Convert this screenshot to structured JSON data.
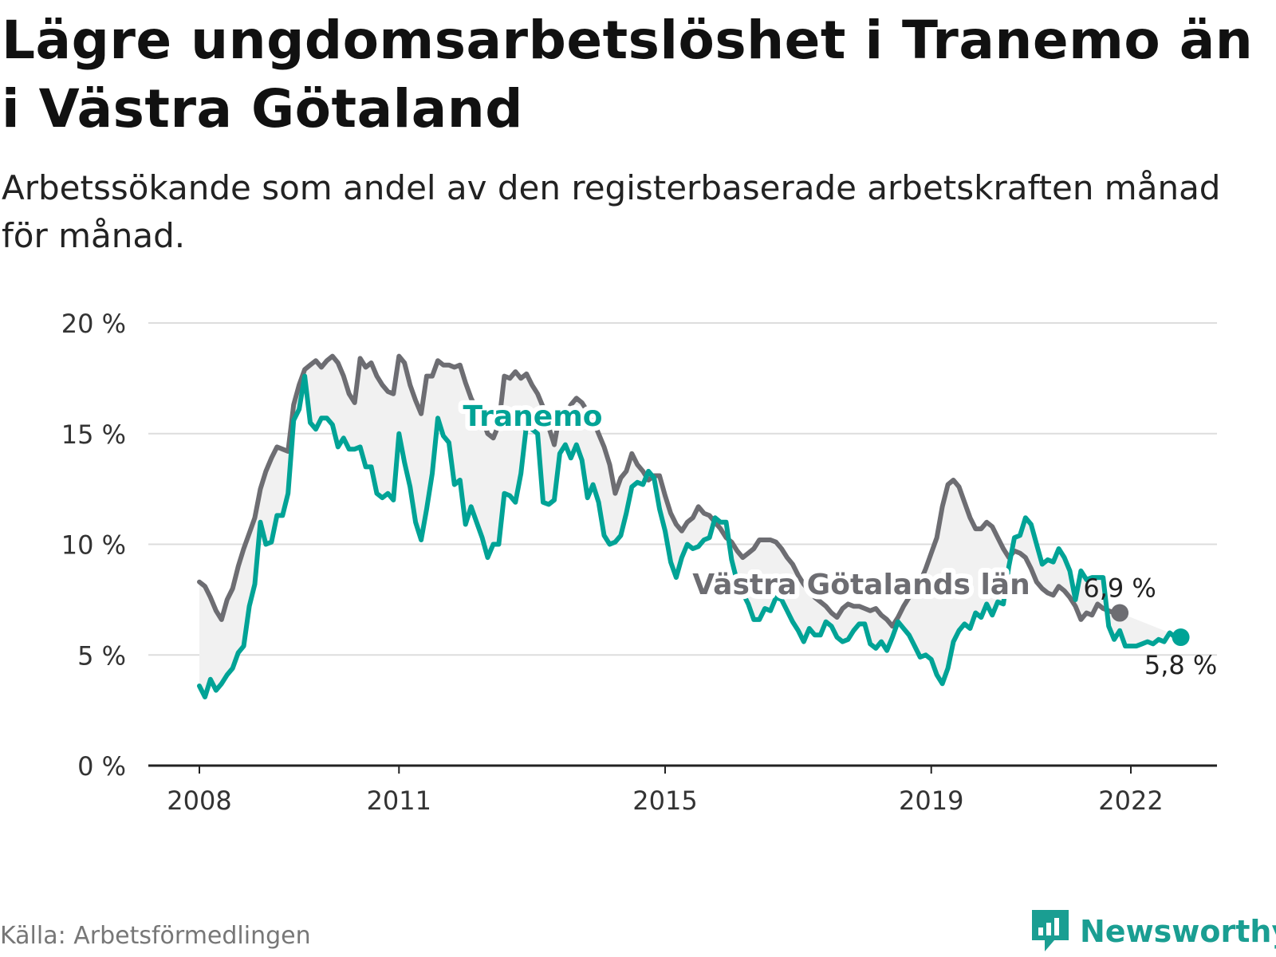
{
  "title": "Lägre ungdomsarbetslöshet i Tranemo än i Västra Götaland",
  "subtitle": "Arbetssökande som andel av den registerbaserade arbetskraften månad för månad.",
  "source": "Källa: Arbetsförmedlingen",
  "brand": "Newsworthy",
  "colors": {
    "tranemo": "#00a396",
    "region": "#6d6d72",
    "fill": "#f1f1f1",
    "grid": "#dddddd",
    "axis": "#222222"
  },
  "chart_data": {
    "type": "line",
    "title": "Lägre ungdomsarbetslöshet i Tranemo än i Västra Götaland",
    "xlabel": "",
    "ylabel": "",
    "xlim": [
      2008.0,
      2023.8
    ],
    "ylim": [
      0,
      20
    ],
    "yticks": [
      0,
      5,
      10,
      15,
      20
    ],
    "ytick_labels": [
      "0 %",
      "5 %",
      "10 %",
      "15 %",
      "20 %"
    ],
    "xticks": [
      2008,
      2011,
      2015,
      2019,
      2022
    ],
    "xtick_labels": [
      "2008",
      "2011",
      "2015",
      "2019",
      "2022"
    ],
    "grid": true,
    "series": [
      {
        "name": "Västra Götalands län",
        "label": "Västra Götalands län",
        "end_label": "6,9 %",
        "x_start": 2008.0,
        "step": 0.0833333,
        "values": [
          8.3,
          8.1,
          7.6,
          7.0,
          6.6,
          7.5,
          8.0,
          9.0,
          9.8,
          10.5,
          11.2,
          12.5,
          13.3,
          13.9,
          14.4,
          14.3,
          14.2,
          16.3,
          17.2,
          17.9,
          18.1,
          18.3,
          18.0,
          18.3,
          18.5,
          18.2,
          17.6,
          16.8,
          16.4,
          18.4,
          18.0,
          18.2,
          17.6,
          17.2,
          16.9,
          16.8,
          18.5,
          18.2,
          17.2,
          16.5,
          15.9,
          17.6,
          17.6,
          18.3,
          18.1,
          18.1,
          18.0,
          18.1,
          17.3,
          16.6,
          16.1,
          15.7,
          15.0,
          14.8,
          15.4,
          17.6,
          17.5,
          17.8,
          17.5,
          17.7,
          17.2,
          16.8,
          16.2,
          15.3,
          14.5,
          15.9,
          15.9,
          16.3,
          16.6,
          16.4,
          16.0,
          15.6,
          15.0,
          14.4,
          13.6,
          12.3,
          13.0,
          13.3,
          14.1,
          13.6,
          13.3,
          12.9,
          13.1,
          13.1,
          12.2,
          11.4,
          10.9,
          10.6,
          11.0,
          11.2,
          11.7,
          11.4,
          11.3,
          11.0,
          10.7,
          10.3,
          10.1,
          9.7,
          9.4,
          9.6,
          9.8,
          10.2,
          10.2,
          10.2,
          10.1,
          9.8,
          9.4,
          9.1,
          8.6,
          8.2,
          7.9,
          7.6,
          7.4,
          7.2,
          6.9,
          6.7,
          7.1,
          7.3,
          7.2,
          7.2,
          7.1,
          7.0,
          7.1,
          6.8,
          6.6,
          6.3,
          6.7,
          7.2,
          7.6,
          7.8,
          8.3,
          8.9,
          9.6,
          10.3,
          11.7,
          12.7,
          12.9,
          12.6,
          11.9,
          11.2,
          10.7,
          10.7,
          11.0,
          10.8,
          10.3,
          9.8,
          9.4,
          9.7,
          9.6,
          9.4,
          8.9,
          8.3,
          8.0,
          7.8,
          7.7,
          8.1,
          7.9,
          7.6,
          7.2,
          6.6,
          6.9,
          6.8,
          7.3,
          7.1,
          7.0,
          6.9,
          6.9
        ]
      },
      {
        "name": "Tranemo",
        "label": "Tranemo",
        "end_label": "5,8 %",
        "x_start": 2008.0,
        "step": 0.0833333,
        "values": [
          3.6,
          3.1,
          3.9,
          3.4,
          3.7,
          4.1,
          4.4,
          5.1,
          5.4,
          7.2,
          8.2,
          11.0,
          10.0,
          10.1,
          11.3,
          11.3,
          12.3,
          15.6,
          16.1,
          17.6,
          15.5,
          15.2,
          15.7,
          15.7,
          15.4,
          14.4,
          14.8,
          14.3,
          14.3,
          14.4,
          13.5,
          13.5,
          12.3,
          12.1,
          12.3,
          12.0,
          15.0,
          13.7,
          12.6,
          11.0,
          10.2,
          11.6,
          13.2,
          15.7,
          14.9,
          14.6,
          12.7,
          12.9,
          10.9,
          11.7,
          11.0,
          10.3,
          9.4,
          10.0,
          10.0,
          12.3,
          12.2,
          11.9,
          13.2,
          15.4,
          15.2,
          15.0,
          11.9,
          11.8,
          12.0,
          14.1,
          14.5,
          13.9,
          14.5,
          13.8,
          12.1,
          12.7,
          11.9,
          10.4,
          10.0,
          10.1,
          10.4,
          11.4,
          12.6,
          12.8,
          12.7,
          13.3,
          13.0,
          11.6,
          10.6,
          9.2,
          8.5,
          9.4,
          10.0,
          9.8,
          9.9,
          10.2,
          10.3,
          11.2,
          11.0,
          11.0,
          9.3,
          8.3,
          7.8,
          7.3,
          6.6,
          6.6,
          7.1,
          7.0,
          7.6,
          7.5,
          7.0,
          6.5,
          6.1,
          5.6,
          6.2,
          5.9,
          5.9,
          6.5,
          6.3,
          5.8,
          5.6,
          5.7,
          6.1,
          6.4,
          6.4,
          5.5,
          5.3,
          5.6,
          5.2,
          5.8,
          6.5,
          6.2,
          5.9,
          5.4,
          4.9,
          5.0,
          4.8,
          4.1,
          3.7,
          4.4,
          5.6,
          6.1,
          6.4,
          6.2,
          6.9,
          6.7,
          7.3,
          6.8,
          7.4,
          7.3,
          9.0,
          10.3,
          10.4,
          11.2,
          10.9,
          10.0,
          9.1,
          9.3,
          9.2,
          9.8,
          9.4,
          8.8,
          7.5,
          8.8,
          8.4,
          8.5,
          8.5,
          8.5,
          6.3,
          5.7,
          6.1,
          5.4,
          5.4,
          5.4,
          5.5,
          5.6,
          5.5,
          5.7,
          5.6,
          6.0,
          5.8,
          5.8
        ]
      }
    ]
  }
}
